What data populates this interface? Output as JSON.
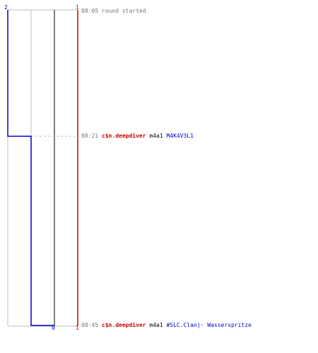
{
  "colors": {
    "team_a": "#0000cc",
    "team_b": "#cc0000",
    "neutral": "#999999",
    "gray_line": "#bfbfbf",
    "dark_line": "#555555",
    "text": "#777777"
  },
  "scale": {
    "top_left": "2",
    "top_right": "1",
    "bottom_mid": "0",
    "bottom_right": "1"
  },
  "events": [
    {
      "time": "08:05",
      "message": "round started"
    },
    {
      "time": "08:21",
      "attacker": "c$n.deepdiver",
      "weapon": "m4a1",
      "victim": "M4K4V3L1"
    },
    {
      "time": "08:45",
      "attacker": "c$n.deepdiver",
      "weapon": "m4a1",
      "victim": "#SLC.Clan|- Wasserspritze"
    }
  ]
}
